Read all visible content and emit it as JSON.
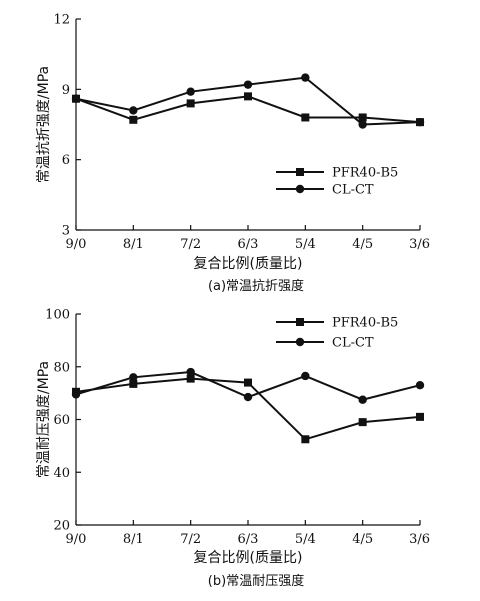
{
  "chart_data": [
    {
      "type": "line",
      "caption": "(a)常温抗折强度",
      "xlabel": "复合比例(质量比)",
      "ylabel": "常温抗折强度/MPa",
      "categories": [
        "9/0",
        "8/1",
        "7/2",
        "6/3",
        "5/4",
        "4/5",
        "3/6"
      ],
      "ylim": [
        3,
        12
      ],
      "yticks": [
        3,
        6,
        9,
        12
      ],
      "legend_position": "lower-right",
      "series": [
        {
          "name": "PFR40-B5",
          "marker": "square",
          "values": [
            8.6,
            7.7,
            8.4,
            8.7,
            7.8,
            7.8,
            7.6
          ]
        },
        {
          "name": "CL-CT",
          "marker": "circle",
          "values": [
            8.6,
            8.1,
            8.9,
            9.2,
            9.5,
            7.5,
            7.6
          ]
        }
      ]
    },
    {
      "type": "line",
      "caption": "(b)常温耐压强度",
      "xlabel": "复合比例(质量比)",
      "ylabel": "常温耐压强度/MPa",
      "categories": [
        "9/0",
        "8/1",
        "7/2",
        "6/3",
        "5/4",
        "4/5",
        "3/6"
      ],
      "ylim": [
        20,
        100
      ],
      "yticks": [
        20,
        40,
        60,
        80,
        100
      ],
      "legend_position": "top-right",
      "series": [
        {
          "name": "PFR40-B5",
          "marker": "square",
          "values": [
            70.5,
            73.5,
            75.5,
            74,
            52.5,
            59,
            61
          ]
        },
        {
          "name": "CL-CT",
          "marker": "circle",
          "values": [
            69.5,
            76,
            78,
            68.5,
            76.5,
            67.5,
            73
          ]
        }
      ]
    }
  ]
}
